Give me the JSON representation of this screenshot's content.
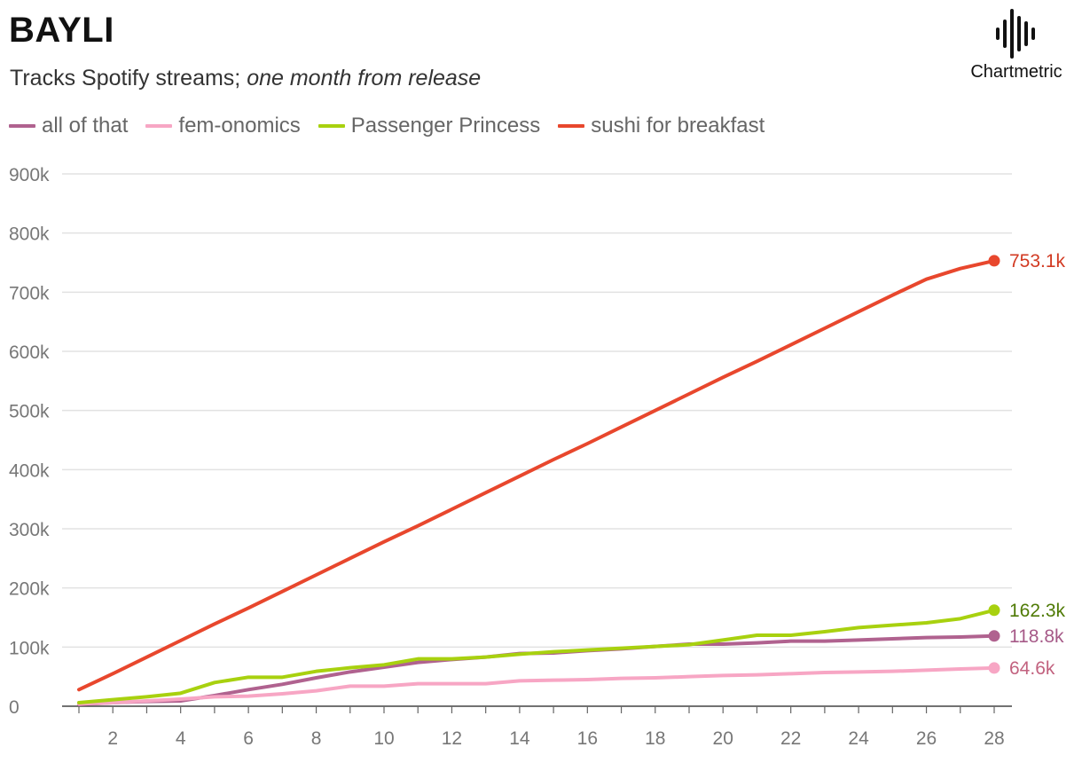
{
  "header": {
    "title": "BAYLI",
    "subtitle_prefix": "Tracks Spotify streams; ",
    "subtitle_emphasis": "one month from release",
    "brand": "Chartmetric"
  },
  "chart_data": {
    "type": "line",
    "title": "BAYLI",
    "subtitle": "Tracks Spotify streams; one month from release",
    "xlabel": "",
    "ylabel": "",
    "xlim": [
      1,
      28
    ],
    "ylim": [
      0,
      900000
    ],
    "grid": true,
    "legend_position": "top-left",
    "x": [
      1,
      2,
      3,
      4,
      5,
      6,
      7,
      8,
      9,
      10,
      11,
      12,
      13,
      14,
      15,
      16,
      17,
      18,
      19,
      20,
      21,
      22,
      23,
      24,
      25,
      26,
      27,
      28
    ],
    "x_ticks": [
      2,
      4,
      6,
      8,
      10,
      12,
      14,
      16,
      18,
      20,
      22,
      24,
      26,
      28
    ],
    "x_tick_labels": [
      "2",
      "4",
      "6",
      "8",
      "10",
      "12",
      "14",
      "16",
      "18",
      "20",
      "22",
      "24",
      "26",
      "28"
    ],
    "y_ticks": [
      0,
      100000,
      200000,
      300000,
      400000,
      500000,
      600000,
      700000,
      800000,
      900000
    ],
    "y_tick_labels": [
      "0",
      "100k",
      "200k",
      "300k",
      "400k",
      "500k",
      "600k",
      "700k",
      "800k",
      "900k"
    ],
    "series": [
      {
        "name": "all of that",
        "color": "#b0628f",
        "label_color": "#a65a88",
        "end_label": "118.8k",
        "values": [
          3000,
          6000,
          8000,
          9000,
          18000,
          28000,
          37000,
          48000,
          58000,
          66000,
          74000,
          79000,
          83000,
          89000,
          90000,
          94000,
          97000,
          101000,
          105000,
          105000,
          107000,
          110000,
          110000,
          112000,
          114000,
          116000,
          117000,
          118800
        ]
      },
      {
        "name": "fem-onomics",
        "color": "#f7a6c4",
        "label_color": "#c2627f",
        "end_label": "64.6k",
        "values": [
          4000,
          6000,
          9000,
          12000,
          16000,
          17000,
          21000,
          26000,
          34000,
          34000,
          38000,
          38000,
          38000,
          43000,
          44000,
          45000,
          47000,
          48000,
          50000,
          52000,
          53000,
          55000,
          57000,
          58000,
          59000,
          61000,
          63000,
          64600
        ]
      },
      {
        "name": "Passenger Princess",
        "color": "#a8d10f",
        "label_color": "#4f7a05",
        "end_label": "162.3k",
        "values": [
          6000,
          11000,
          16000,
          22000,
          40000,
          49000,
          49000,
          59000,
          65000,
          70000,
          80000,
          80000,
          83000,
          88000,
          92000,
          95000,
          98000,
          101000,
          104000,
          112000,
          120000,
          120000,
          126000,
          133000,
          137000,
          141000,
          148000,
          162300
        ]
      },
      {
        "name": "sushi for breakfast",
        "color": "#e8472d",
        "label_color": "#d23a22",
        "end_label": "753.1k",
        "values": [
          28000,
          55000,
          83000,
          111000,
          139000,
          166000,
          194000,
          222000,
          250000,
          278000,
          305000,
          333000,
          361000,
          389000,
          417000,
          444000,
          472000,
          500000,
          528000,
          556000,
          583000,
          611000,
          639000,
          667000,
          695000,
          722000,
          740000,
          753100
        ]
      }
    ]
  }
}
